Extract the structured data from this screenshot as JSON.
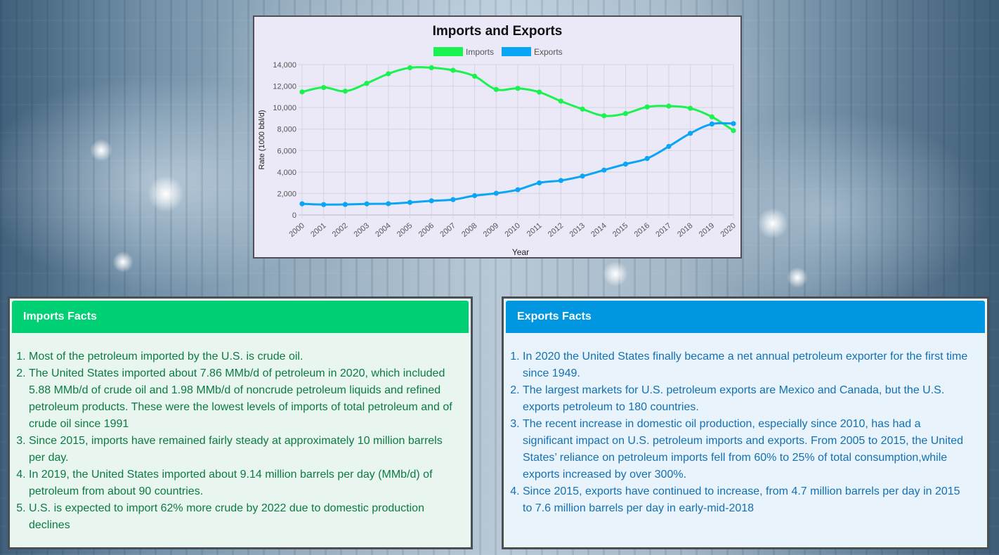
{
  "chart_data": {
    "type": "line",
    "title": "Imports and Exports",
    "xlabel": "Year",
    "ylabel": "Rate (1000 bbl/d)",
    "ylim": [
      0,
      14000
    ],
    "yticks": [
      0,
      2000,
      4000,
      6000,
      8000,
      10000,
      12000,
      14000
    ],
    "ytick_labels": [
      "0",
      "2,000",
      "4,000",
      "6,000",
      "8,000",
      "10,000",
      "12,000",
      "14,000"
    ],
    "grid": true,
    "legend_position": "top",
    "categories": [
      "2000",
      "2001",
      "2002",
      "2003",
      "2004",
      "2005",
      "2006",
      "2007",
      "2008",
      "2009",
      "2010",
      "2011",
      "2012",
      "2013",
      "2014",
      "2015",
      "2016",
      "2017",
      "2018",
      "2019",
      "2020"
    ],
    "series": [
      {
        "name": "Imports",
        "color": "#19f24f",
        "values": [
          11460,
          11870,
          11530,
          12260,
          13150,
          13710,
          13710,
          13470,
          12920,
          11690,
          11790,
          11440,
          10600,
          9860,
          9240,
          9450,
          10060,
          10140,
          9940,
          9140,
          7860
        ]
      },
      {
        "name": "Exports",
        "color": "#0aa6f5",
        "values": [
          1040,
          970,
          980,
          1030,
          1050,
          1170,
          1320,
          1430,
          1800,
          2020,
          2350,
          2990,
          3210,
          3620,
          4180,
          4740,
          5260,
          6380,
          7600,
          8470,
          8510
        ]
      }
    ]
  },
  "imports_facts": {
    "title": "Imports Facts",
    "items": [
      "Most of the petroleum imported by the U.S. is crude oil.",
      "The United States imported about 7.86 MMb/d of petroleum in 2020, which included 5.88 MMb/d of crude oil and 1.98 MMb/d of noncrude petroleum liquids and refined petroleum products. These were the lowest levels of imports of total petroleum and of crude oil since 1991",
      "Since 2015, imports have remained fairly steady at approximately 10 million barrels per day.",
      "In 2019, the United States imported about 9.14 million barrels per day (MMb/d) of petroleum from about 90 countries.",
      "U.S. is expected to import 62% more crude by 2022 due to domestic production declines"
    ]
  },
  "exports_facts": {
    "title": "Exports Facts",
    "items": [
      "In 2020 the United States finally became a net annual petroleum exporter for the first time since 1949.",
      "The largest markets for U.S. petroleum exports are Mexico and Canada, but the U.S. exports petroleum to 180 countries.",
      "The recent increase in domestic oil production, especially since 2010, has had a significant impact on U.S. petroleum imports and exports. From 2005 to 2015, the United States’ reliance on petroleum imports fell from 60% to 25% of total consumption,while exports increased by over 300%.",
      "Since 2015, exports have continued to increase, from 4.7 million barrels per day in 2015 to 7.6 million barrels per day in early-mid-2018"
    ]
  }
}
